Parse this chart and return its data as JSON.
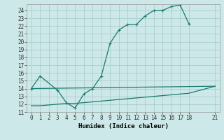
{
  "xlabel": "Humidex (Indice chaleur)",
  "bg_color": "#cde8e8",
  "grid_color": "#aacccc",
  "line_color": "#1a7a6e",
  "xlim": [
    -0.5,
    21.5
  ],
  "ylim": [
    11,
    24.8
  ],
  "xticks": [
    0,
    1,
    2,
    3,
    4,
    5,
    6,
    7,
    8,
    9,
    10,
    11,
    12,
    13,
    14,
    15,
    16,
    17,
    18,
    21
  ],
  "yticks": [
    11,
    12,
    13,
    14,
    15,
    16,
    17,
    18,
    19,
    20,
    21,
    22,
    23,
    24
  ],
  "line1_x": [
    0,
    1,
    3,
    4,
    5,
    6,
    7,
    8,
    9,
    10,
    11,
    12,
    13,
    14,
    15,
    16,
    17,
    18
  ],
  "line1_y": [
    14.0,
    15.6,
    13.8,
    12.2,
    11.5,
    13.3,
    14.0,
    15.6,
    19.8,
    21.5,
    22.2,
    22.2,
    23.3,
    24.0,
    24.0,
    24.5,
    24.7,
    22.3
  ],
  "line2_x": [
    0,
    1,
    2,
    3,
    4,
    5,
    6,
    7,
    8,
    9,
    10,
    11,
    12,
    13,
    14,
    15,
    16,
    17,
    18,
    21
  ],
  "line2_y": [
    11.8,
    11.8,
    11.9,
    12.0,
    12.1,
    12.1,
    12.2,
    12.3,
    12.4,
    12.5,
    12.6,
    12.7,
    12.8,
    12.9,
    13.0,
    13.1,
    13.2,
    13.3,
    13.4,
    14.3
  ],
  "line3_x": [
    0,
    21
  ],
  "line3_y": [
    14.0,
    14.3
  ],
  "font_family": "monospace",
  "tick_fontsize": 5.5,
  "xlabel_fontsize": 6.5
}
